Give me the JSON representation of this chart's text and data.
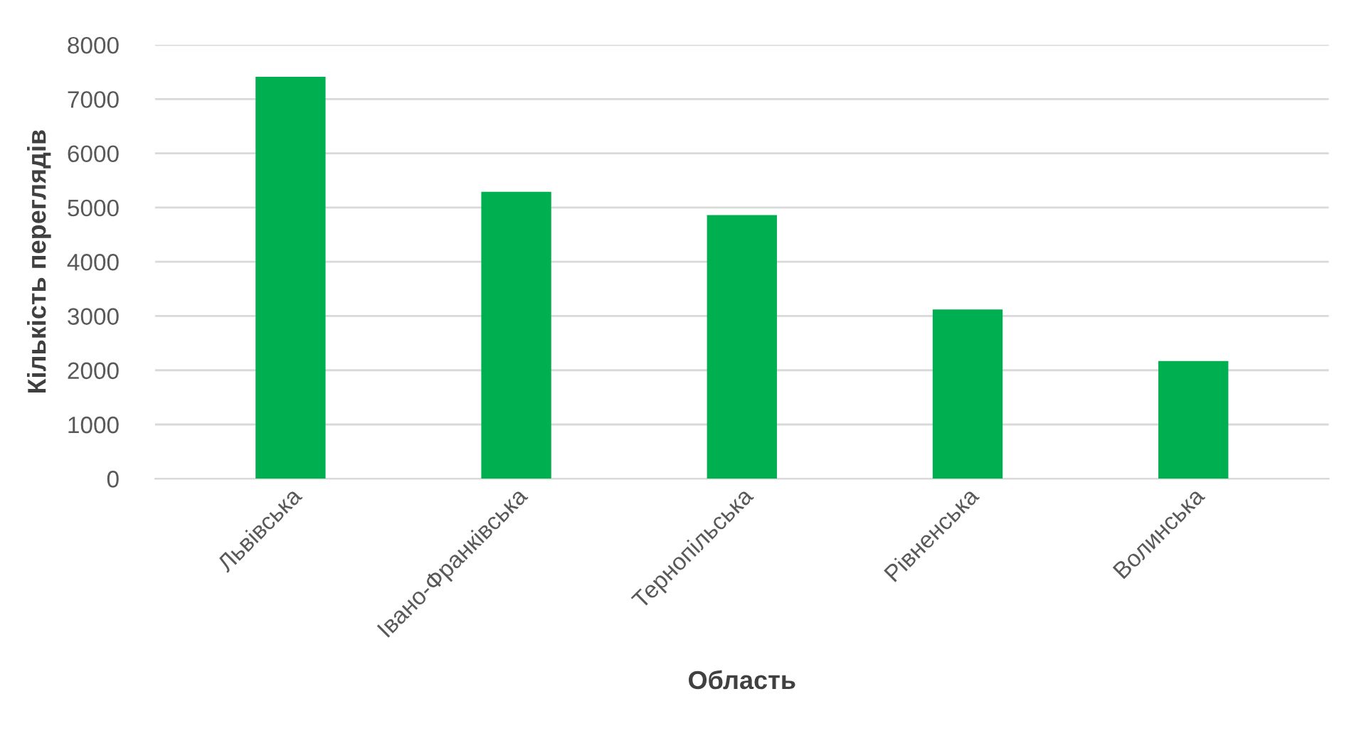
{
  "chart_data": {
    "type": "bar",
    "xlabel": "Область",
    "ylabel": "Кількість переглядів",
    "categories": [
      "Львівська",
      "Івано-Франківська",
      "Тернопільська",
      "Рівненська",
      "Волинська"
    ],
    "values": [
      7410,
      5290,
      4860,
      3120,
      2170
    ],
    "color": "#00b050",
    "ylim": [
      0,
      8000
    ],
    "yticks": [
      0,
      1000,
      2000,
      3000,
      4000,
      5000,
      6000,
      7000,
      8000
    ],
    "grid": "y"
  }
}
